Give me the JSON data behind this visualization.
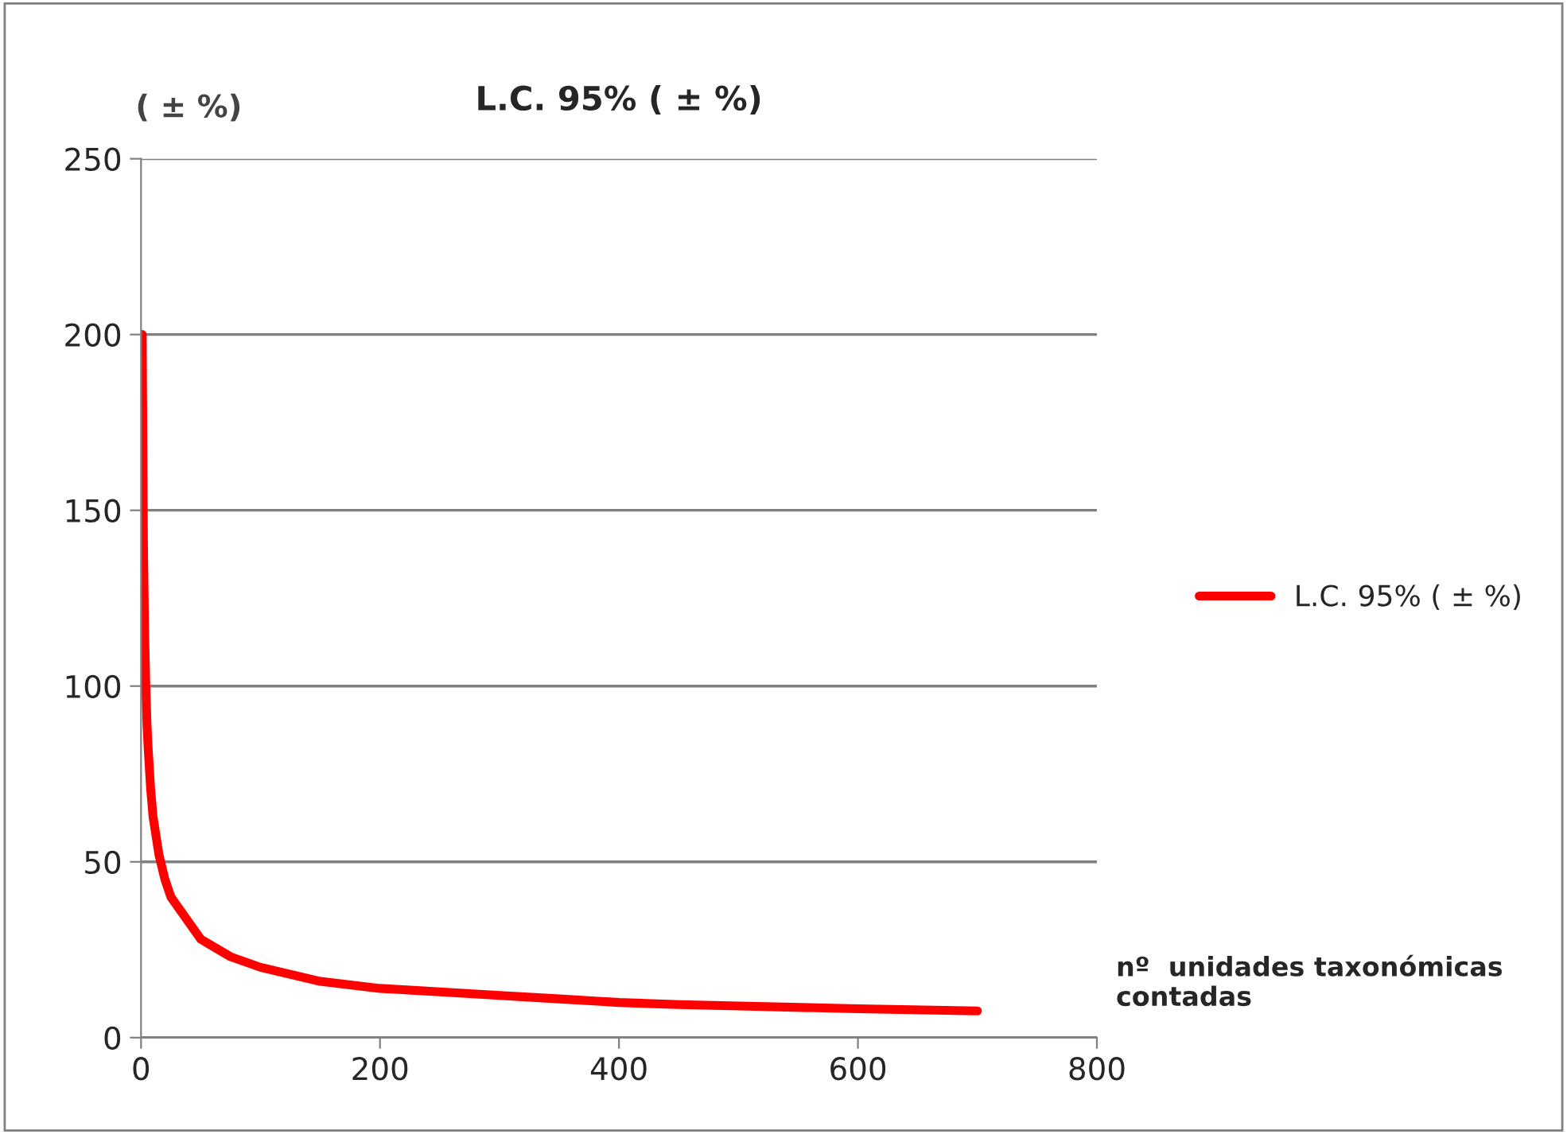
{
  "chart_data": {
    "type": "line",
    "title": "L.C. 95% ( ± %)",
    "ylabel": "( ± %)",
    "xlabel": "nº  unidades taxonómicas\ncontadas",
    "x": [
      1,
      2,
      3,
      4,
      5,
      6,
      8,
      10,
      15,
      20,
      25,
      50,
      75,
      100,
      150,
      200,
      250,
      300,
      350,
      400,
      450,
      500,
      600,
      700
    ],
    "series": [
      {
        "name": "L.C. 95% ( ± %)",
        "color": "#ff0000",
        "values": [
          200,
          141,
          115,
          100,
          89,
          82,
          71,
          63,
          52,
          45,
          40,
          28,
          23,
          20,
          16,
          14,
          13,
          12,
          11,
          10,
          9.4,
          9,
          8.2,
          7.6
        ]
      }
    ],
    "xlim": [
      0,
      800
    ],
    "xticks": [
      0,
      200,
      400,
      600,
      800
    ],
    "ylim": [
      0,
      250
    ],
    "yticks": [
      0,
      50,
      100,
      150,
      200,
      250
    ],
    "grid": "y",
    "legend": "right",
    "marker": "none",
    "line_style": "solid"
  }
}
